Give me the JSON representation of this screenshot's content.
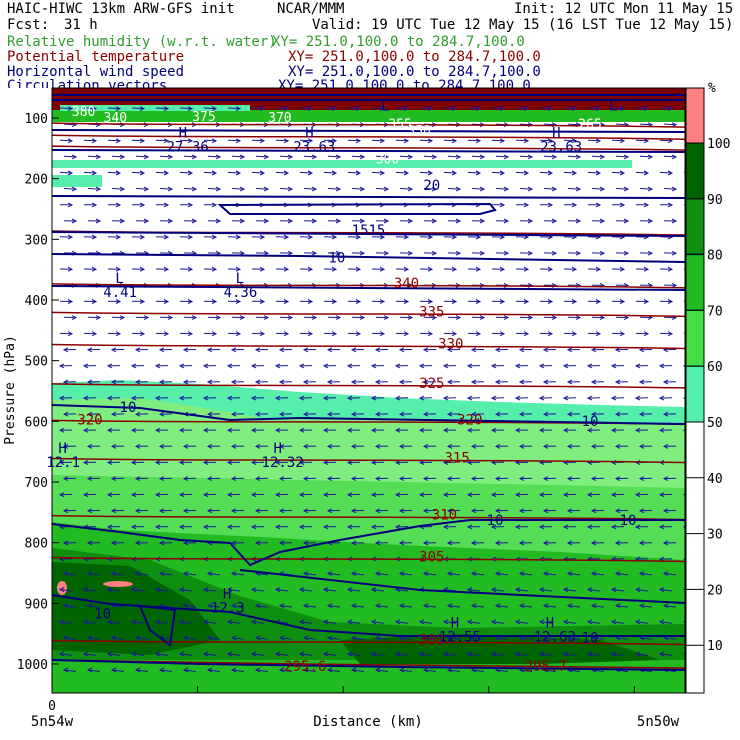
{
  "header": {
    "model": "HAIC-HIWC 13km ARW-GFS init",
    "org": "NCAR/MMM",
    "init": "Init: 12 UTC Mon 11 May 15",
    "fcst_label": "Fcst:",
    "fcst_value": "31 h",
    "valid": "Valid: 19 UTC Tue 12 May 15 (16 LST Tue 12 May 15)"
  },
  "fields": [
    {
      "name": "Relative humidity (w.r.t. water)",
      "xy": "XY= 251.0,100.0 to 284.7,100.0",
      "color": "#2e9e2e"
    },
    {
      "name": "Potential temperature",
      "xy": "XY= 251.0,100.0 to 284.7,100.0",
      "color": "#8b0000"
    },
    {
      "name": "Horizontal wind speed",
      "xy": "XY= 251.0,100.0 to 284.7,100.0",
      "color": "#00007f"
    },
    {
      "name": "Circulation vectors",
      "xy": "XY= 251.0,100.0 to 284.7,100.0",
      "color": "#00007f"
    }
  ],
  "colorbar": {
    "unit": "%",
    "ticks": [
      "100",
      "90",
      "80",
      "70",
      "60",
      "50",
      "40",
      "30",
      "20",
      "10"
    ],
    "colors": [
      "#ff8080",
      "#006400",
      "#0f8f0f",
      "#22bb22",
      "#44dd44",
      "#7fee7f",
      "#55eeaa"
    ]
  },
  "chart_data": {
    "type": "vertical cross-section (filled contours, contour lines, wind vectors)",
    "ylabel": "Pressure (hPa)",
    "xlabel": "Distance (km)",
    "y_ticks": [
      "100",
      "200",
      "300",
      "400",
      "500",
      "600",
      "700",
      "800",
      "900",
      "1000"
    ],
    "x_tick_label": "0",
    "left_label": "5n54w",
    "right_label": "5n50w",
    "theta_labels": [
      {
        "text": "340",
        "p": 375,
        "d": 0.56
      },
      {
        "text": "335",
        "p": 422,
        "d": 0.6
      },
      {
        "text": "330",
        "p": 475,
        "d": 0.63
      },
      {
        "text": "325",
        "p": 540,
        "d": 0.6
      },
      {
        "text": "320",
        "p": 600,
        "d": 0.06
      },
      {
        "text": "320",
        "p": 600,
        "d": 0.66
      },
      {
        "text": "315",
        "p": 663,
        "d": 0.64
      },
      {
        "text": "310",
        "p": 757,
        "d": 0.62
      },
      {
        "text": "305",
        "p": 826,
        "d": 0.6
      },
      {
        "text": "300",
        "p": 963,
        "d": 0.6
      },
      {
        "text": "295.6",
        "p": 1007,
        "d": 0.4
      },
      {
        "text": "295.7",
        "p": 1007,
        "d": 0.78
      }
    ],
    "theta_lines_p": [
      110,
      130,
      148,
      288,
      375,
      422,
      475,
      540,
      600,
      663,
      757,
      826,
      963
    ],
    "wind_labels": [
      {
        "text": "20",
        "p": 214,
        "d": 0.6
      },
      {
        "text": "1515",
        "p": 288,
        "d": 0.5
      },
      {
        "text": "10",
        "p": 333,
        "d": 0.45
      },
      {
        "text": "10",
        "p": 580,
        "d": 0.12
      },
      {
        "text": "10",
        "p": 603,
        "d": 0.85
      },
      {
        "text": "10",
        "p": 766,
        "d": 0.7
      },
      {
        "text": "10",
        "p": 766,
        "d": 0.91
      },
      {
        "text": "10",
        "p": 920,
        "d": 0.08
      },
      {
        "text": "10",
        "p": 960,
        "d": 0.85
      }
    ],
    "upper_labels": [
      {
        "text": "380",
        "p": 92,
        "d": 0.05
      },
      {
        "text": "340",
        "p": 102,
        "d": 0.1
      },
      {
        "text": "375",
        "p": 100,
        "d": 0.24
      },
      {
        "text": "370",
        "p": 102,
        "d": 0.36
      },
      {
        "text": "355",
        "p": 112,
        "d": 0.55
      },
      {
        "text": "350",
        "p": 123,
        "d": 0.58
      },
      {
        "text": "265",
        "p": 112,
        "d": 0.85
      },
      {
        "text": "300",
        "p": 170,
        "d": 0.53
      }
    ],
    "extrema": [
      {
        "kind": "L",
        "value": "",
        "p": 88,
        "d": 0.52
      },
      {
        "kind": "L",
        "value": "",
        "p": 88,
        "d": 0.88
      },
      {
        "kind": "H",
        "value": "27.36",
        "p": 132,
        "d": 0.2
      },
      {
        "kind": "H",
        "value": "23.63",
        "p": 132,
        "d": 0.4
      },
      {
        "kind": "H",
        "value": "23.63",
        "p": 132,
        "d": 0.79
      },
      {
        "kind": "L",
        "value": "4.41",
        "p": 372,
        "d": 0.1
      },
      {
        "kind": "L",
        "value": "4.36",
        "p": 372,
        "d": 0.29
      },
      {
        "kind": "H",
        "value": "12.1",
        "p": 652,
        "d": 0.01
      },
      {
        "kind": "H",
        "value": "12.32",
        "p": 652,
        "d": 0.35
      },
      {
        "kind": "H",
        "value": "12.3",
        "p": 892,
        "d": 0.27
      },
      {
        "kind": "H",
        "value": "12.55",
        "p": 940,
        "d": 0.63
      },
      {
        "kind": "H",
        "value": "12.63",
        "p": 940,
        "d": 0.78
      }
    ]
  }
}
